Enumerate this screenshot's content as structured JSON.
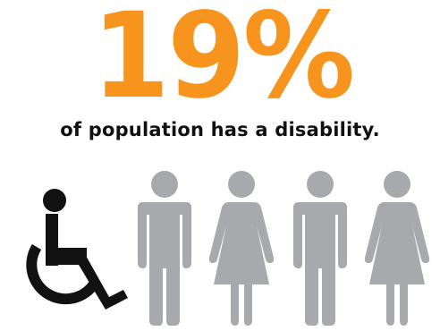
{
  "headline": {
    "percentage": "19%"
  },
  "caption": {
    "text": "of population has a disability."
  },
  "icons": {
    "disability_icon": "wheelchair-icon",
    "people": [
      "man-icon",
      "woman-icon",
      "man-icon",
      "woman-icon"
    ]
  },
  "colors": {
    "accent": "#f7941d",
    "text": "#111111",
    "wheelchair": "#111111",
    "people": "#a7a9ac"
  }
}
